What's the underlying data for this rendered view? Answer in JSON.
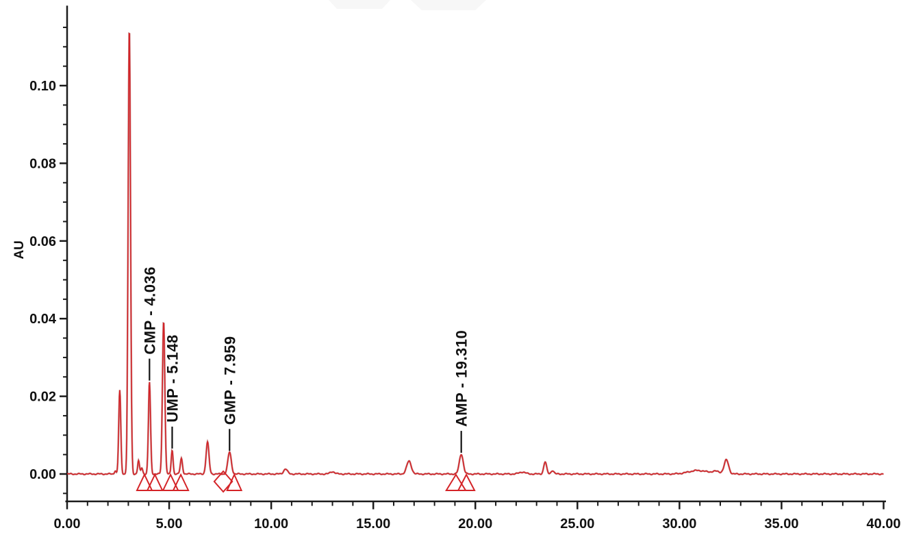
{
  "page": {
    "background": "#ffffff",
    "description": "HPLC chromatogram with labeled nucleotide peaks"
  },
  "chart_data": {
    "type": "line",
    "subtype": "hplc-chromatogram",
    "title": "",
    "xlabel": "",
    "ylabel": "AU",
    "xlim": [
      0,
      40
    ],
    "ylim": [
      -0.00706,
      0.1206
    ],
    "grid": false,
    "legend": "none",
    "x_major_ticks": [
      0,
      5,
      10,
      15,
      20,
      25,
      30,
      35,
      40
    ],
    "x_major_labels": [
      "0.00",
      "5.00",
      "10.00",
      "15.00",
      "20.00",
      "25.00",
      "30.00",
      "35.00",
      "40.00"
    ],
    "x_minor_step": 1,
    "y_major_ticks": [
      0.0,
      0.02,
      0.04,
      0.06,
      0.08,
      0.1
    ],
    "y_major_labels": [
      "0.00",
      "0.02",
      "0.04",
      "0.06",
      "0.08",
      "0.10"
    ],
    "y_minor_step": 0.005,
    "y_minor_min": -0.005,
    "y_minor_max": 0.115,
    "axis_color": "#1b1b1b",
    "label_color": "#111111",
    "trace_color": "#d42327",
    "trace_shadow_color": "#8a1518",
    "peaks": [
      {
        "t": 2.36,
        "h": 0.0009,
        "s": 0.04
      },
      {
        "t": 2.58,
        "h": 0.0215,
        "s": 0.05
      },
      {
        "t": 3.05,
        "h": 0.115,
        "s": 0.058
      },
      {
        "t": 3.5,
        "h": 0.0034,
        "s": 0.045
      },
      {
        "t": 3.66,
        "h": 0.0016,
        "s": 0.045
      },
      {
        "t": 4.036,
        "h": 0.0237,
        "s": 0.052,
        "name": "CMP",
        "label": "CMP - 4.036"
      },
      {
        "t": 4.73,
        "h": 0.0395,
        "s": 0.058
      },
      {
        "t": 5.148,
        "h": 0.0062,
        "s": 0.045,
        "name": "UMP",
        "label": "UMP - 5.148"
      },
      {
        "t": 5.6,
        "h": 0.004,
        "s": 0.055
      },
      {
        "t": 6.88,
        "h": 0.0082,
        "s": 0.07
      },
      {
        "t": 7.959,
        "h": 0.0056,
        "s": 0.085,
        "name": "GMP",
        "label": "GMP - 7.959"
      },
      {
        "t": 10.7,
        "h": 0.0013,
        "s": 0.09
      },
      {
        "t": 13.0,
        "h": 0.0006,
        "s": 0.11
      },
      {
        "t": 16.75,
        "h": 0.0033,
        "s": 0.115
      },
      {
        "t": 19.31,
        "h": 0.0051,
        "s": 0.095,
        "name": "AMP",
        "label": "AMP - 19.310"
      },
      {
        "t": 22.3,
        "h": 0.0005,
        "s": 0.15
      },
      {
        "t": 23.42,
        "h": 0.0031,
        "s": 0.07
      },
      {
        "t": 23.78,
        "h": 0.0009,
        "s": 0.07
      },
      {
        "t": 30.9,
        "h": 0.0009,
        "s": 0.45
      },
      {
        "t": 31.8,
        "h": 0.0006,
        "s": 0.2
      },
      {
        "t": 32.3,
        "h": 0.0036,
        "s": 0.11
      }
    ],
    "labeled_peaks": [
      {
        "name": "CMP",
        "retention_time": "4.036"
      },
      {
        "name": "UMP",
        "retention_time": "5.148"
      },
      {
        "name": "GMP",
        "retention_time": "7.959"
      },
      {
        "name": "AMP",
        "retention_time": "19.310"
      }
    ],
    "integration_markers": [
      {
        "shape": "triangle",
        "t": 3.79,
        "w": 0.74
      },
      {
        "shape": "triangle",
        "t": 4.3,
        "w": 0.74
      },
      {
        "shape": "triangle",
        "t": 5.07,
        "w": 0.74
      },
      {
        "shape": "triangle",
        "t": 5.57,
        "w": 0.74
      },
      {
        "shape": "diamond",
        "t": 7.65,
        "w": 0.88
      },
      {
        "shape": "triangle",
        "t": 8.19,
        "w": 0.7
      },
      {
        "shape": "triangle",
        "t": 19.05,
        "w": 0.95
      },
      {
        "shape": "triangle",
        "t": 19.56,
        "w": 0.8
      }
    ],
    "noise": {
      "a1": 0.0001,
      "f1": 12.9,
      "a2": 7e-05,
      "f2": 33.7
    }
  }
}
